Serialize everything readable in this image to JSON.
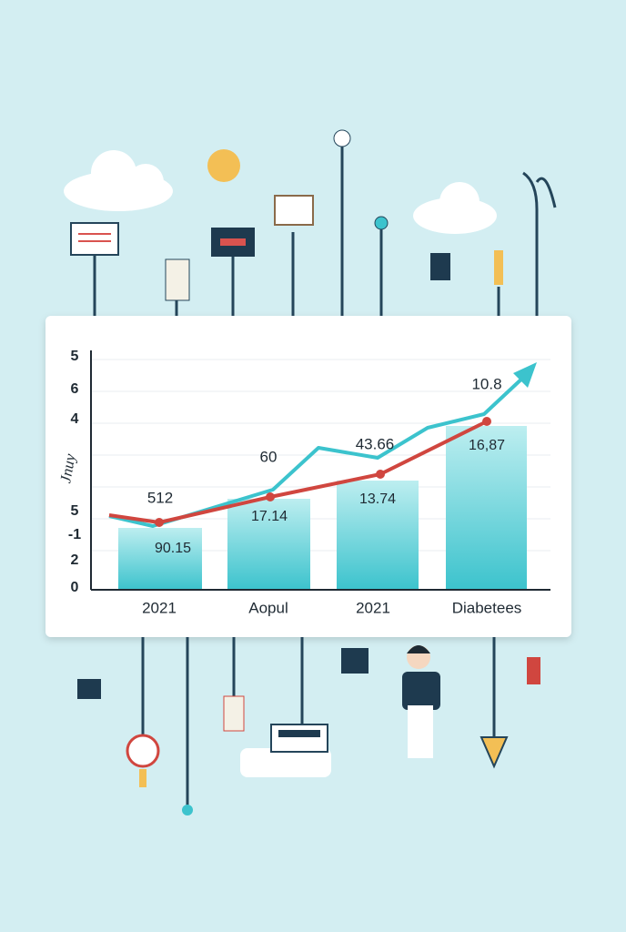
{
  "chart": {
    "y_labels": [
      "5",
      "6",
      "4",
      "5",
      "-1",
      "2",
      "0"
    ],
    "y_axis_label": "Jnuy",
    "categories": [
      "2021",
      "Aopul",
      "2021",
      "Diabetees"
    ],
    "bar_labels": [
      "90.15",
      "17.14",
      "13.74",
      "16,87"
    ],
    "point_labels": [
      "512",
      "60",
      "43.66",
      "10.8"
    ]
  }
}
